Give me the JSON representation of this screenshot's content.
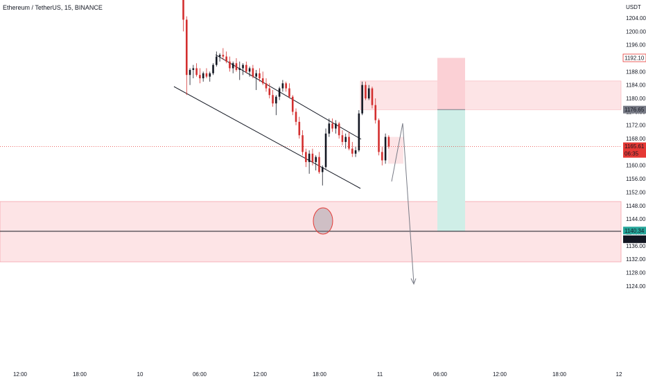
{
  "header": {
    "title": "Ethereum / TetherUS, 15, BINANCE",
    "currency": "USDT"
  },
  "colors": {
    "up": "#131722",
    "down": "#d32f2f",
    "zone": "#fde4e6",
    "zone_border": "#f5a3ab",
    "target_fill": "#cfeee7",
    "stop_fill": "#fbd0d5",
    "price_badge": "#e53935",
    "level_badge_grey": "#787b86",
    "level_badge_green": "#26a69a",
    "level_badge_black": "#131722"
  },
  "chart_data": {
    "type": "candlestick",
    "y_axis": {
      "range": [
        1122,
        1208
      ],
      "ticks": [
        "1204.00",
        "1200.00",
        "1196.00",
        "1192.00",
        "1188.00",
        "1184.00",
        "1180.00",
        "1176.00",
        "1172.00",
        "1168.00",
        "1164.00",
        "1160.00",
        "1156.00",
        "1152.00",
        "1148.00",
        "1144.00",
        "1140.00",
        "1136.00",
        "1132.00",
        "1128.00",
        "1124.00"
      ]
    },
    "x_axis": {
      "ticks": [
        "12:00",
        "18:00",
        "10",
        "06:00",
        "12:00",
        "18:00",
        "11",
        "06:00",
        "12:00",
        "18:00",
        "12"
      ]
    },
    "candles": [
      [
        1210.0,
        1211.0,
        1200.0,
        1203.5
      ],
      [
        1203.5,
        1204.5,
        1181.0,
        1187.0
      ],
      [
        1187.0,
        1189.0,
        1184.0,
        1188.5
      ],
      [
        1188.5,
        1190.0,
        1186.0,
        1189.0
      ],
      [
        1189.0,
        1190.5,
        1186.5,
        1187.0
      ],
      [
        1187.0,
        1189.0,
        1184.5,
        1186.0
      ],
      [
        1186.0,
        1188.0,
        1185.0,
        1187.5
      ],
      [
        1187.5,
        1189.0,
        1186.0,
        1186.5
      ],
      [
        1186.5,
        1188.0,
        1185.0,
        1187.5
      ],
      [
        1187.5,
        1190.5,
        1187.0,
        1190.0
      ],
      [
        1190.0,
        1194.0,
        1189.5,
        1192.5
      ],
      [
        1192.5,
        1193.5,
        1191.0,
        1193.0
      ],
      [
        1193.0,
        1195.0,
        1191.5,
        1192.5
      ],
      [
        1192.5,
        1194.0,
        1190.5,
        1191.0
      ],
      [
        1191.0,
        1192.5,
        1188.0,
        1189.0
      ],
      [
        1189.0,
        1191.0,
        1187.5,
        1190.5
      ],
      [
        1190.5,
        1192.0,
        1188.0,
        1188.5
      ],
      [
        1188.5,
        1191.0,
        1185.5,
        1189.0
      ],
      [
        1189.0,
        1190.5,
        1187.0,
        1190.0
      ],
      [
        1190.0,
        1191.0,
        1187.5,
        1188.0
      ],
      [
        1188.0,
        1189.5,
        1186.5,
        1189.0
      ],
      [
        1189.0,
        1190.0,
        1186.0,
        1186.5
      ],
      [
        1186.5,
        1188.5,
        1182.5,
        1187.5
      ],
      [
        1187.5,
        1189.0,
        1185.0,
        1186.0
      ],
      [
        1186.0,
        1188.0,
        1184.0,
        1184.5
      ],
      [
        1184.5,
        1186.0,
        1182.0,
        1183.0
      ],
      [
        1183.0,
        1184.5,
        1180.0,
        1181.0
      ],
      [
        1181.0,
        1182.5,
        1177.5,
        1178.5
      ],
      [
        1178.5,
        1181.0,
        1175.0,
        1180.5
      ],
      [
        1180.5,
        1183.5,
        1179.5,
        1183.0
      ],
      [
        1183.0,
        1185.5,
        1182.0,
        1184.5
      ],
      [
        1184.5,
        1185.0,
        1182.0,
        1183.0
      ],
      [
        1183.0,
        1184.5,
        1180.0,
        1180.5
      ],
      [
        1180.5,
        1181.0,
        1175.0,
        1176.0
      ],
      [
        1176.0,
        1177.0,
        1172.0,
        1173.0
      ],
      [
        1173.0,
        1174.5,
        1168.0,
        1169.0
      ],
      [
        1169.0,
        1170.5,
        1163.0,
        1164.0
      ],
      [
        1164.0,
        1165.0,
        1159.5,
        1161.0
      ],
      [
        1161.0,
        1164.5,
        1157.5,
        1163.5
      ],
      [
        1163.5,
        1165.0,
        1160.0,
        1161.0
      ],
      [
        1161.0,
        1163.0,
        1158.5,
        1162.5
      ],
      [
        1162.5,
        1164.0,
        1157.5,
        1158.0
      ],
      [
        1158.0,
        1160.0,
        1154.0,
        1159.5
      ],
      [
        1159.5,
        1171.0,
        1159.0,
        1169.5
      ],
      [
        1169.5,
        1174.0,
        1168.5,
        1172.5
      ],
      [
        1172.5,
        1174.0,
        1170.0,
        1171.0
      ],
      [
        1171.0,
        1173.5,
        1169.5,
        1172.5
      ],
      [
        1172.5,
        1173.0,
        1168.0,
        1169.0
      ],
      [
        1169.0,
        1170.5,
        1166.0,
        1167.0
      ],
      [
        1167.0,
        1169.5,
        1165.0,
        1168.5
      ],
      [
        1168.5,
        1170.0,
        1164.5,
        1165.0
      ],
      [
        1165.0,
        1167.0,
        1162.5,
        1163.5
      ],
      [
        1163.5,
        1165.5,
        1162.5,
        1164.5
      ],
      [
        1164.5,
        1176.5,
        1164.0,
        1175.5
      ],
      [
        1175.5,
        1185.0,
        1175.0,
        1184.0
      ],
      [
        1184.0,
        1185.0,
        1179.5,
        1180.0
      ],
      [
        1180.0,
        1184.0,
        1179.5,
        1183.0
      ],
      [
        1183.0,
        1183.5,
        1177.0,
        1178.0
      ],
      [
        1178.0,
        1180.0,
        1172.5,
        1173.5
      ],
      [
        1173.5,
        1174.0,
        1163.0,
        1164.0
      ],
      [
        1164.0,
        1165.5,
        1160.0,
        1161.5
      ],
      [
        1161.5,
        1169.5,
        1160.5,
        1168.5
      ],
      [
        1168.5,
        1169.0,
        1165.0,
        1165.61
      ]
    ],
    "price_badges": [
      {
        "value": "1192.10",
        "style": "red_outline"
      },
      {
        "value": "1176.65",
        "style": "grey"
      },
      {
        "value": "1165.61",
        "sub": "06:35",
        "style": "red"
      },
      {
        "value": "1140.34",
        "style": "green"
      },
      {
        "value": "1140.23",
        "style": "black"
      }
    ],
    "levels": {
      "supply_zone": [
        1176.65,
        1185.2
      ],
      "demand_zone": [
        1131.2,
        1149.2
      ],
      "horizontal_line": 1140.23,
      "current_price": 1165.61,
      "position_entry": 1176.65,
      "position_stop": 1192.1,
      "position_target": 1140.34
    }
  }
}
